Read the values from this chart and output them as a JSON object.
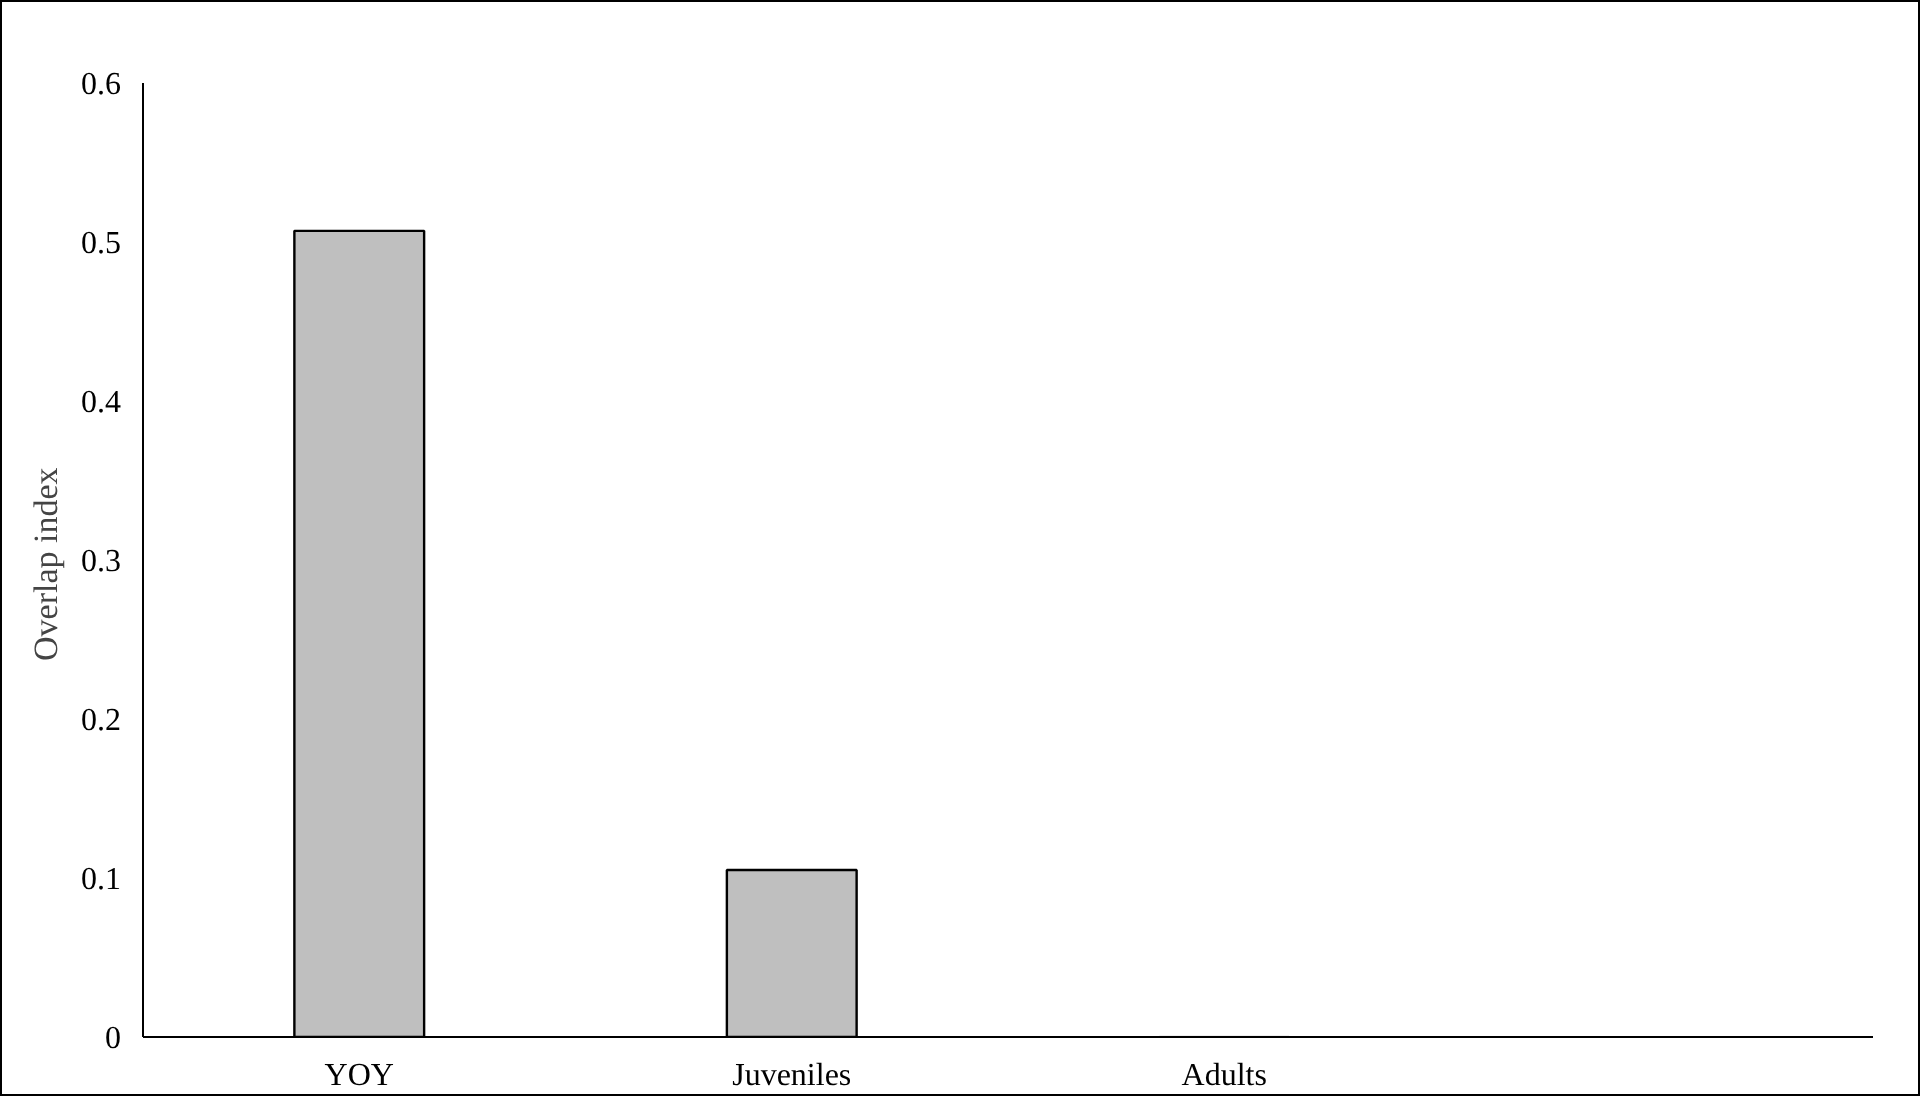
{
  "chart_data": {
    "type": "bar",
    "ylabel": "Overlap  index",
    "categories": [
      "YOY",
      "Juveniles",
      "Adults",
      null
    ],
    "values": [
      0.507,
      0.105,
      0,
      null
    ],
    "color": "#bfbfbf",
    "ylim": [
      0,
      0.6
    ],
    "yticks": [
      0,
      0.1,
      0.2,
      0.3,
      0.4,
      0.5,
      0.6
    ],
    "grid": false
  }
}
